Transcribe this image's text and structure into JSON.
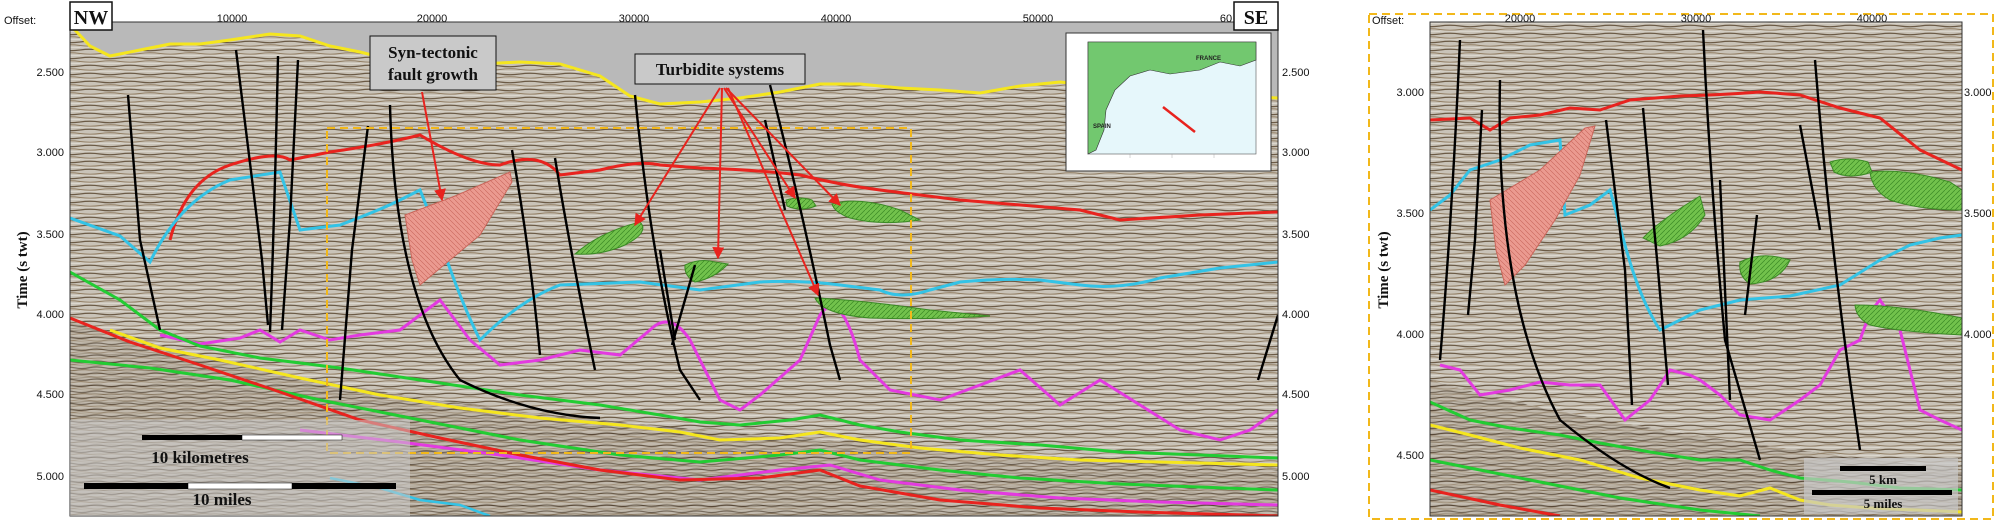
{
  "left_panel": {
    "offset_label": "Offset:",
    "x_ticks": [
      "10000",
      "20000",
      "30000",
      "40000",
      "50000",
      "60"
    ],
    "y_ticks_left": [
      "2.500",
      "3.000",
      "3.500",
      "4.000",
      "4.500",
      "5.000"
    ],
    "y_ticks_right": [
      "2.500",
      "3.000",
      "3.500",
      "4.000",
      "4.500",
      "5.000"
    ],
    "y_label": "Time (s twt)",
    "nw_label": "NW",
    "se_label": "SE",
    "annotation_fault": "Syn-tectonic fault growth",
    "annotation_fault_line1": "Syn-tectonic",
    "annotation_fault_line2": "fault growth",
    "annotation_turbidite": "Turbidite systems",
    "scale_km": "10 kilometres",
    "scale_miles": "10 miles"
  },
  "inset_map": {
    "label_france": "FRANCE",
    "label_spain": "SPAIN"
  },
  "right_panel": {
    "offset_label": "Offset:",
    "x_ticks": [
      "20000",
      "30000",
      "40000"
    ],
    "y_ticks_left": [
      "3.000",
      "3.500",
      "4.000",
      "4.500"
    ],
    "y_ticks_right": [
      "3.000",
      "3.500",
      "4.000"
    ],
    "y_label": "Time (s twt)",
    "scale_km": "5 km",
    "scale_miles": "5 miles"
  },
  "colors": {
    "seabed": "#f5e61e",
    "red_horizon": "#e8231e",
    "cyan_horizon": "#33c3e6",
    "magenta_horizon": "#e33ae0",
    "green_horizon": "#22cc33",
    "fault": "#000000",
    "turbidite_fill": "#5cbf3e",
    "growth_fill": "#e98a80",
    "frame_dashed": "#f2b81a",
    "water": "#b9b9b9"
  }
}
